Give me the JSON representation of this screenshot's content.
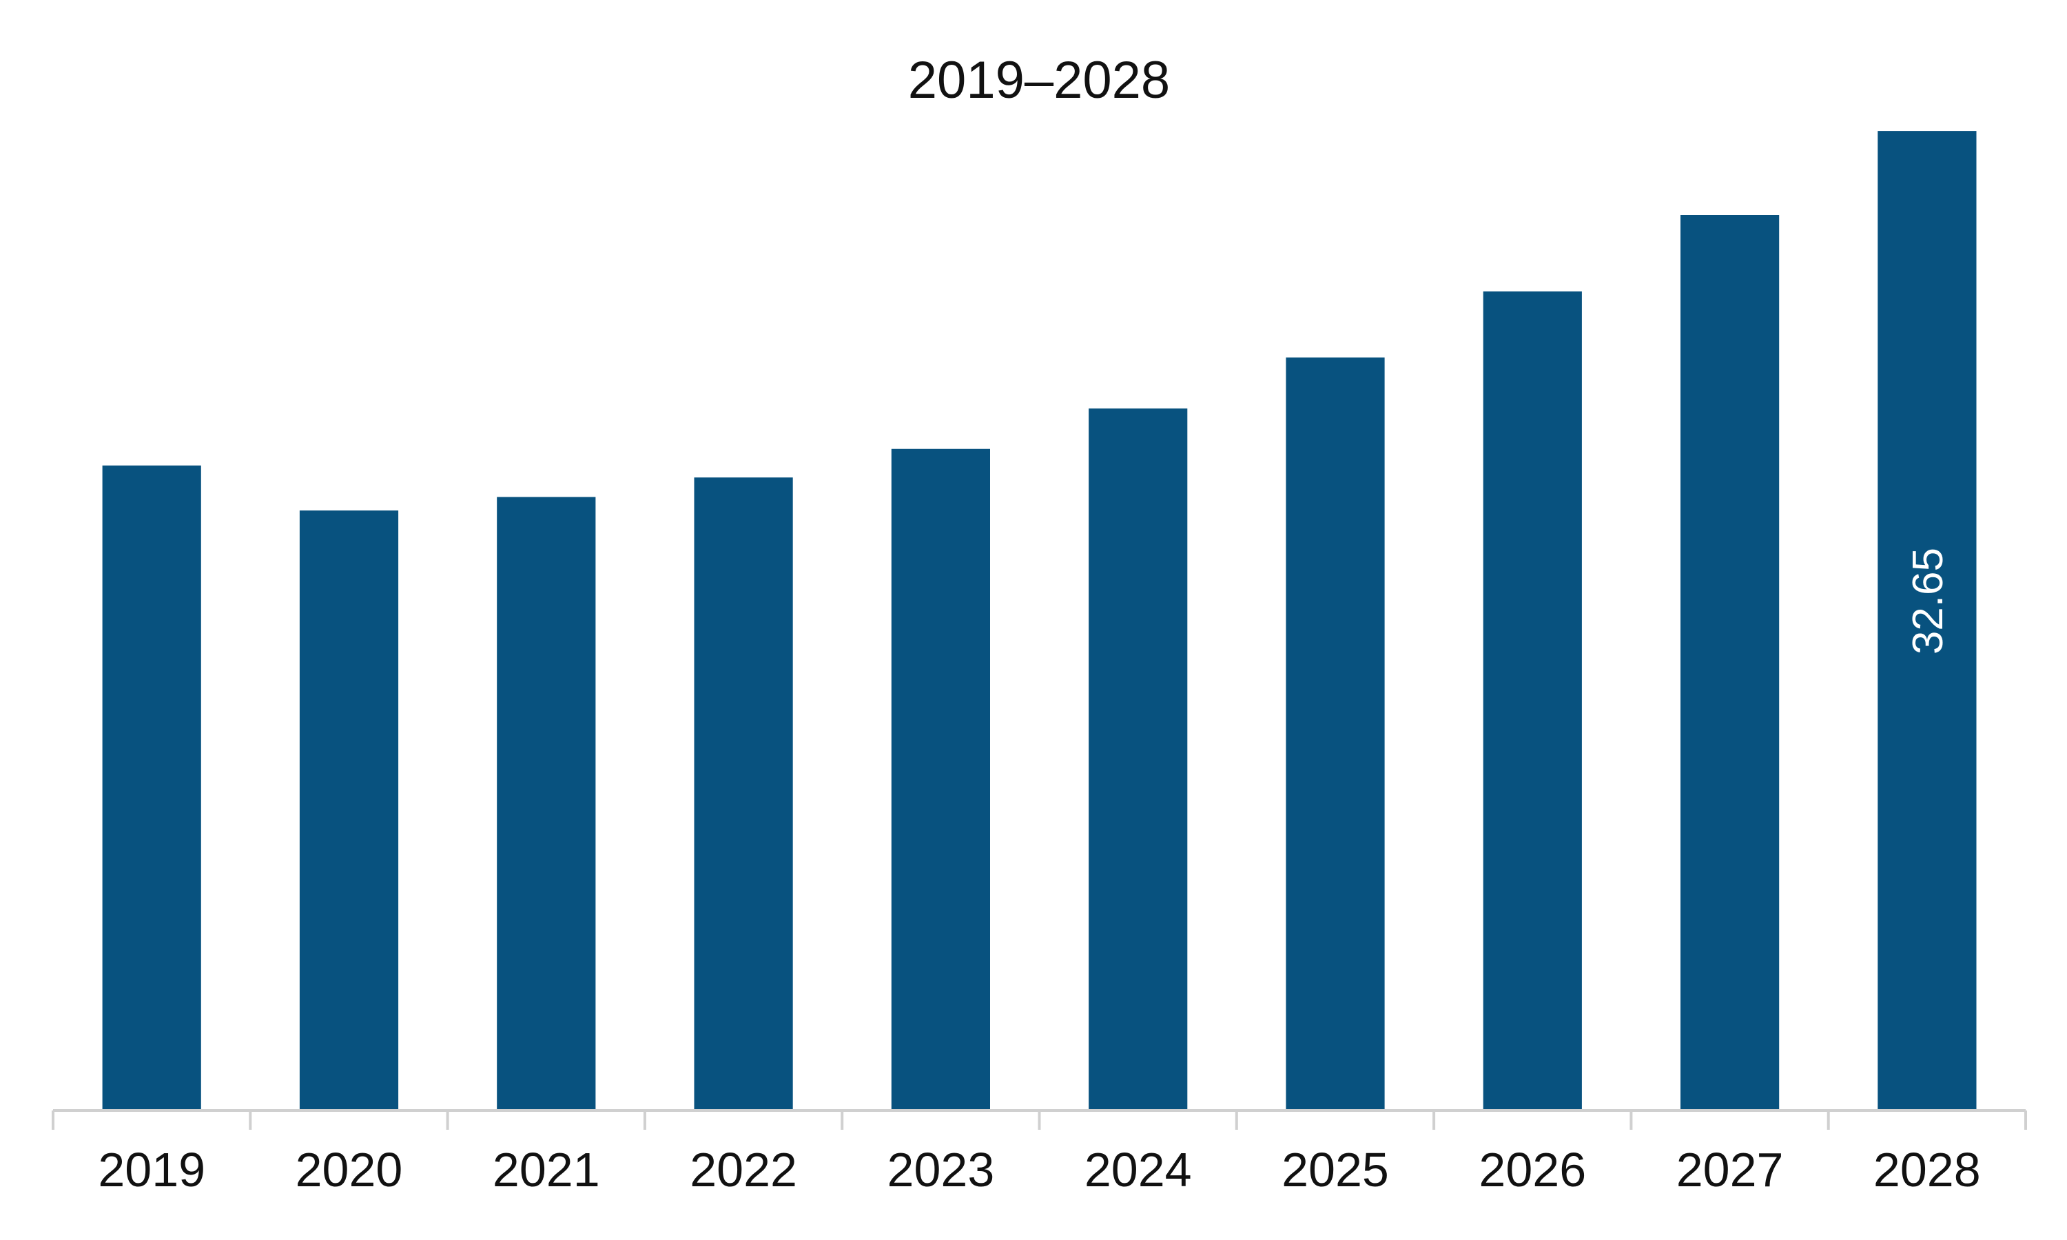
{
  "chart_data": {
    "type": "bar",
    "title": "2019–2028",
    "xlabel": "",
    "ylabel": "",
    "categories": [
      "2019",
      "2020",
      "2021",
      "2022",
      "2023",
      "2024",
      "2025",
      "2026",
      "2027",
      "2028"
    ],
    "values": [
      21.5,
      20.0,
      20.45,
      21.1,
      22.05,
      23.4,
      25.1,
      27.3,
      29.85,
      32.65
    ],
    "data_labels": [
      "",
      "",
      "",
      "",
      "",
      "",
      "",
      "",
      "",
      "32.65"
    ],
    "ylim": [
      0,
      33.8
    ],
    "grid": false,
    "legend": "none",
    "colors": {
      "bar": "#08527F",
      "axis": "#d0d0d0",
      "text": "#111111",
      "label_on_bar": "#ffffff"
    }
  }
}
